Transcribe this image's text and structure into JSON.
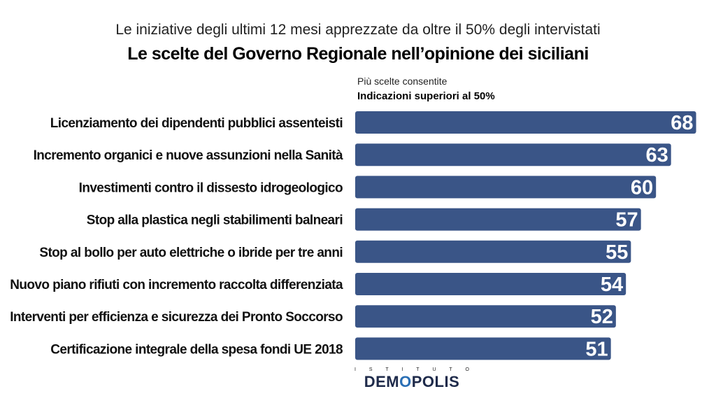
{
  "header": {
    "subtitle": "Le iniziative degli ultimi 12 mesi apprezzate da oltre il 50% degli intervistati",
    "title": "Le scelte del Governo Regionale nell’opinione dei siciliani",
    "note_line1": "Più scelte consentite",
    "note_line2": "Indicazioni superiori al 50%"
  },
  "logo": {
    "top_text": "ISTITUTO",
    "brand_part1": "DEM",
    "brand_o": "O",
    "brand_part2": "POLIS"
  },
  "colors": {
    "bar": "#3a5587",
    "value_text": "#ffffff"
  },
  "chart_data": {
    "type": "bar",
    "orientation": "horizontal",
    "categories": [
      "Licenziamento dei dipendenti pubblici assenteisti",
      "Incremento organici e nuove assunzioni nella Sanità",
      "Investimenti contro il dissesto idrogeologico",
      "Stop alla plastica negli stabilimenti balneari",
      "Stop al bollo per auto elettriche o ibride per tre anni",
      "Nuovo piano rifiuti con incremento raccolta differenziata",
      "Interventi per efficienza e sicurezza dei Pronto Soccorso",
      "Certificazione integrale della spesa fondi UE 2018"
    ],
    "values": [
      68,
      63,
      60,
      57,
      55,
      54,
      52,
      51
    ],
    "data_labels": true,
    "grid": false,
    "legend": "none"
  }
}
